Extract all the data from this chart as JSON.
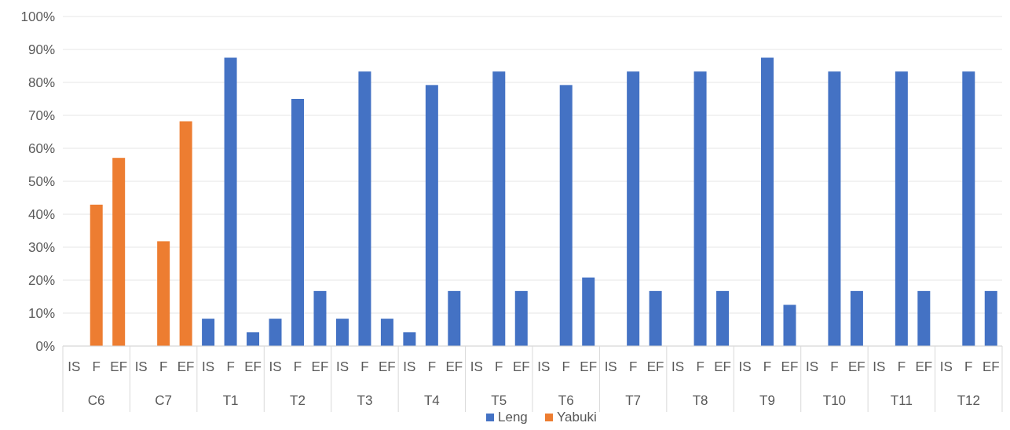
{
  "chart_data": {
    "type": "bar",
    "categories": [
      "IS",
      "F",
      "EF",
      "IS",
      "F",
      "EF",
      "IS",
      "F",
      "EF",
      "IS",
      "F",
      "EF",
      "IS",
      "F",
      "EF",
      "IS",
      "F",
      "EF",
      "IS",
      "F",
      "EF",
      "IS",
      "F",
      "EF",
      "IS",
      "F",
      "EF",
      "IS",
      "F",
      "EF",
      "IS",
      "F",
      "EF",
      "IS",
      "F",
      "EF",
      "IS",
      "F",
      "EF",
      "IS",
      "F",
      "EF"
    ],
    "annotations": [
      "C6",
      "C7",
      "T1",
      "T2",
      "T3",
      "T4",
      "T5",
      "T6",
      "T7",
      "T8",
      "T9",
      "T10",
      "T11",
      "T12"
    ],
    "series": [
      {
        "name": "Leng",
        "color": "#4472c4",
        "values": [
          null,
          null,
          null,
          null,
          null,
          null,
          8.3,
          87.5,
          4.2,
          8.3,
          75,
          16.7,
          8.3,
          83.3,
          8.3,
          4.2,
          79.2,
          16.7,
          0,
          83.3,
          16.7,
          0,
          79.2,
          20.8,
          0,
          83.3,
          16.7,
          0,
          83.3,
          16.7,
          0,
          87.5,
          12.5,
          0,
          83.3,
          16.7,
          0,
          83.3,
          16.7,
          0,
          83.3,
          16.7
        ]
      },
      {
        "name": "Yabuki",
        "color": "#ed7d31",
        "values": [
          0,
          42.9,
          57.1,
          0,
          31.8,
          68.2,
          null,
          null,
          null,
          null,
          null,
          null,
          null,
          null,
          null,
          null,
          null,
          null,
          null,
          null,
          null,
          null,
          null,
          null,
          null,
          null,
          null,
          null,
          null,
          null,
          null,
          null,
          null,
          null,
          null,
          null,
          null,
          null,
          null,
          null,
          null,
          null
        ]
      }
    ],
    "ylim": [
      0,
      100
    ],
    "yticks": [
      {
        "value": 0,
        "label": "0%"
      },
      {
        "value": 10,
        "label": "10%"
      },
      {
        "value": 20,
        "label": "20%"
      },
      {
        "value": 30,
        "label": "30%"
      },
      {
        "value": 40,
        "label": "40%"
      },
      {
        "value": 50,
        "label": "50%"
      },
      {
        "value": 60,
        "label": "60%"
      },
      {
        "value": 70,
        "label": "70%"
      },
      {
        "value": 80,
        "label": "80%"
      },
      {
        "value": 90,
        "label": "90%"
      },
      {
        "value": 100,
        "label": "100%"
      }
    ],
    "grid": "y",
    "legend": "bottom"
  }
}
